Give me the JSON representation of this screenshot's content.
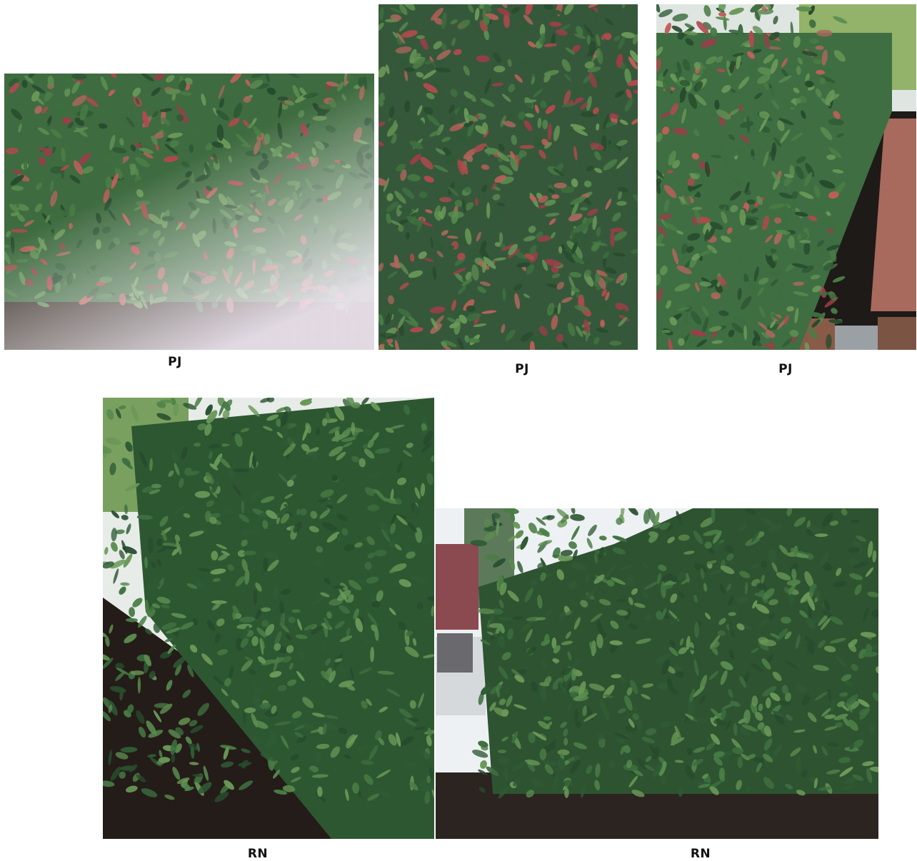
{
  "figure": {
    "panels": [
      {
        "id": "photo-1",
        "label": "PJ",
        "subject": "hedge-with-red-new-growth"
      },
      {
        "id": "photo-2",
        "label": "PJ",
        "subject": "hedge-closeup-red-leaves"
      },
      {
        "id": "photo-3",
        "label": "PJ",
        "subject": "hedge-row-along-brick-path"
      },
      {
        "id": "photo-4",
        "label": "RN",
        "subject": "tall-green-hedge-row"
      },
      {
        "id": "photo-5",
        "label": "RN",
        "subject": "green-hedge-near-driveway"
      }
    ]
  },
  "colors": {
    "leaf_dark": "#2f5a35",
    "leaf_mid": "#4a7d45",
    "leaf_red": "#b04a4e",
    "mulch": "#2a211c",
    "sky": "#e9eef2"
  }
}
